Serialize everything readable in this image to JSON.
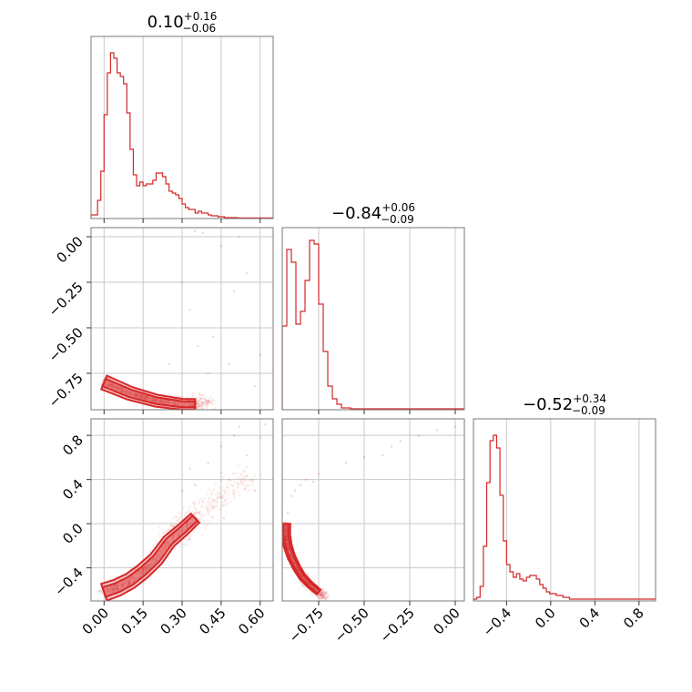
{
  "chart_data": {
    "type": "corner",
    "color": "#d62728",
    "grid": true,
    "parameters": [
      {
        "title_value": "0.10",
        "title_plus": "+0.16",
        "title_minus": "−0.06",
        "range": [
          -0.05,
          0.65
        ]
      },
      {
        "title_value": "−0.84",
        "title_plus": "+0.06",
        "title_minus": "−0.09",
        "range": [
          -0.95,
          0.05
        ]
      },
      {
        "title_value": "−0.52",
        "title_plus": "+0.34",
        "title_minus": "−0.09",
        "range": [
          -0.7,
          0.95
        ]
      }
    ],
    "ticks": {
      "p0": {
        "values": [
          0.0,
          0.15,
          0.3,
          0.45,
          0.6
        ],
        "labels": [
          "0.00",
          "0.15",
          "0.30",
          "0.45",
          "0.60"
        ]
      },
      "p1_x": {
        "values": [
          -0.75,
          -0.5,
          -0.25,
          0.0
        ],
        "labels": [
          "−0.75",
          "−0.50",
          "−0.25",
          "0.00"
        ]
      },
      "p1_y": {
        "values": [
          0.0,
          -0.25,
          -0.5,
          -0.75
        ],
        "labels": [
          "0.00",
          "−0.25",
          "−0.50",
          "−0.75"
        ]
      },
      "p2": {
        "values": [
          -0.4,
          0.0,
          0.4,
          0.8
        ],
        "labels": [
          "−0.4",
          "0.0",
          "0.4",
          "0.8"
        ]
      }
    },
    "histograms": [
      {
        "param": 0,
        "bin_width": 0.0125,
        "bin_start": -0.05,
        "heights": [
          0.02,
          0.02,
          0.1,
          0.26,
          0.57,
          0.8,
          0.91,
          0.88,
          0.8,
          0.78,
          0.74,
          0.58,
          0.38,
          0.24,
          0.18,
          0.2,
          0.18,
          0.19,
          0.19,
          0.21,
          0.25,
          0.25,
          0.23,
          0.19,
          0.15,
          0.14,
          0.13,
          0.11,
          0.08,
          0.06,
          0.05,
          0.05,
          0.03,
          0.04,
          0.03,
          0.03,
          0.02,
          0.015,
          0.015,
          0.01,
          0.01,
          0.005,
          0.005,
          0.005,
          0.005,
          0.003,
          0.003,
          0.003,
          0.003,
          0.003,
          0.003,
          0.003,
          0.003,
          0.003,
          0.003,
          0.003
        ]
      },
      {
        "param": 1,
        "bin_width": 0.025,
        "bin_start": -0.95,
        "heights": [
          0.46,
          0.88,
          0.81,
          0.47,
          0.54,
          0.71,
          0.93,
          0.91,
          0.58,
          0.32,
          0.13,
          0.06,
          0.03,
          0.01,
          0.01,
          0.005,
          0.005,
          0.005,
          0.005,
          0.005,
          0.005,
          0.005,
          0.005,
          0.005,
          0.005,
          0.005,
          0.005,
          0.005,
          0.005,
          0.005,
          0.005,
          0.005,
          0.005,
          0.005,
          0.005,
          0.005,
          0.005,
          0.005,
          0.005,
          0.005
        ]
      },
      {
        "param": 2,
        "bin_width": 0.03,
        "bin_start": -0.7,
        "heights": [
          0.01,
          0.02,
          0.08,
          0.3,
          0.65,
          0.88,
          0.91,
          0.84,
          0.58,
          0.33,
          0.2,
          0.16,
          0.13,
          0.15,
          0.12,
          0.11,
          0.13,
          0.14,
          0.14,
          0.12,
          0.09,
          0.07,
          0.05,
          0.04,
          0.04,
          0.03,
          0.03,
          0.02,
          0.02,
          0.01,
          0.01,
          0.01,
          0.01,
          0.01,
          0.01,
          0.01,
          0.01,
          0.01,
          0.01,
          0.01,
          0.01,
          0.01,
          0.01,
          0.01,
          0.01,
          0.01,
          0.01,
          0.01,
          0.01,
          0.01,
          0.01,
          0.01,
          0.01,
          0.01,
          0.01
        ]
      }
    ],
    "pairs": [
      {
        "x_param": 0,
        "y_param": 1,
        "ridge": [
          [
            0.0,
            -0.8
          ],
          [
            0.05,
            -0.83
          ],
          [
            0.1,
            -0.86
          ],
          [
            0.15,
            -0.88
          ],
          [
            0.2,
            -0.9
          ],
          [
            0.25,
            -0.91
          ],
          [
            0.3,
            -0.92
          ],
          [
            0.35,
            -0.92
          ],
          [
            0.4,
            -0.9
          ]
        ],
        "ridge_scatter": 0.025,
        "outliers": [
          [
            0.38,
            0.02
          ],
          [
            0.45,
            -0.05
          ],
          [
            0.5,
            -0.3
          ],
          [
            0.55,
            -0.2
          ],
          [
            0.33,
            -0.4
          ],
          [
            0.42,
            -0.55
          ],
          [
            0.48,
            -0.7
          ],
          [
            0.6,
            -0.65
          ],
          [
            0.3,
            -0.25
          ],
          [
            0.36,
            -0.6
          ],
          [
            0.52,
            0.0
          ],
          [
            0.4,
            -0.75
          ],
          [
            0.25,
            -0.7
          ],
          [
            0.58,
            -0.82
          ],
          [
            0.35,
            0.03
          ]
        ]
      },
      {
        "x_param": 0,
        "y_param": 2,
        "ridge": [
          [
            0.0,
            -0.62
          ],
          [
            0.05,
            -0.58
          ],
          [
            0.1,
            -0.52
          ],
          [
            0.15,
            -0.43
          ],
          [
            0.2,
            -0.32
          ],
          [
            0.25,
            -0.16
          ],
          [
            0.3,
            -0.06
          ],
          [
            0.35,
            0.05
          ],
          [
            0.45,
            0.25
          ],
          [
            0.55,
            0.45
          ]
        ],
        "ridge_scatter": 0.05,
        "outliers": [
          [
            0.35,
            0.35
          ],
          [
            0.4,
            0.55
          ],
          [
            0.45,
            0.7
          ],
          [
            0.5,
            0.8
          ],
          [
            0.55,
            0.62
          ],
          [
            0.6,
            0.78
          ],
          [
            0.38,
            0.2
          ],
          [
            0.42,
            0.15
          ],
          [
            0.48,
            0.4
          ],
          [
            0.3,
            0.3
          ],
          [
            0.62,
            0.9
          ],
          [
            0.52,
            0.88
          ],
          [
            0.58,
            0.3
          ],
          [
            0.33,
            0.5
          ],
          [
            0.46,
            0.05
          ]
        ]
      },
      {
        "x_param": 1,
        "y_param": 2,
        "ridge": [
          [
            -0.93,
            0.0
          ],
          [
            -0.93,
            -0.1
          ],
          [
            -0.92,
            -0.2
          ],
          [
            -0.9,
            -0.3
          ],
          [
            -0.87,
            -0.4
          ],
          [
            -0.84,
            -0.48
          ],
          [
            -0.8,
            -0.55
          ],
          [
            -0.75,
            -0.62
          ],
          [
            -0.72,
            -0.66
          ]
        ],
        "ridge_scatter": 0.025,
        "outliers": [
          [
            -0.92,
            0.1
          ],
          [
            -0.9,
            0.25
          ],
          [
            -0.88,
            0.3
          ],
          [
            -0.85,
            0.35
          ],
          [
            -0.82,
            0.4
          ],
          [
            -0.78,
            0.38
          ],
          [
            -0.75,
            0.45
          ],
          [
            -0.6,
            0.55
          ],
          [
            -0.5,
            0.6
          ],
          [
            -0.35,
            0.7
          ],
          [
            -0.2,
            0.8
          ],
          [
            -0.1,
            0.85
          ],
          [
            0.0,
            0.88
          ],
          [
            -0.4,
            0.62
          ],
          [
            -0.3,
            0.75
          ]
        ]
      }
    ]
  }
}
